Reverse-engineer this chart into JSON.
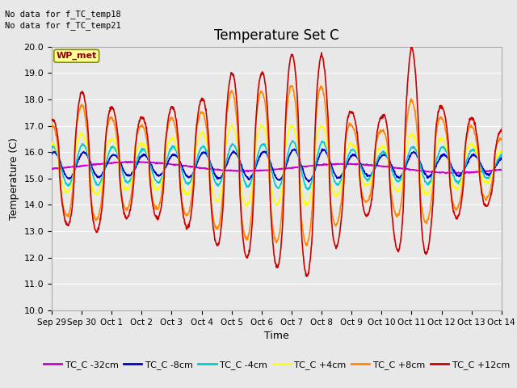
{
  "title": "Temperature Set C",
  "xlabel": "Time",
  "ylabel": "Temperature (C)",
  "ylim": [
    10.0,
    20.0
  ],
  "yticks": [
    10.0,
    11.0,
    12.0,
    13.0,
    14.0,
    15.0,
    16.0,
    17.0,
    18.0,
    19.0,
    20.0
  ],
  "background_color": "#e8e8e8",
  "plot_bg_color": "#e8e8e8",
  "grid_color": "#ffffff",
  "note1": "No data for f_TC_temp18",
  "note2": "No data for f_TC_temp21",
  "wp_met_label": "WP_met",
  "wp_met_color": "#ffff99",
  "wp_met_border": "#8b8b00",
  "series": [
    {
      "label": "TC_C -32cm",
      "color": "#cc00cc",
      "linewidth": 1.2
    },
    {
      "label": "TC_C -8cm",
      "color": "#0000cc",
      "linewidth": 1.2
    },
    {
      "label": "TC_C -4cm",
      "color": "#00cccc",
      "linewidth": 1.2
    },
    {
      "label": "TC_C +4cm",
      "color": "#ffff00",
      "linewidth": 1.2
    },
    {
      "label": "TC_C +8cm",
      "color": "#ff8800",
      "linewidth": 1.2
    },
    {
      "label": "TC_C +12cm",
      "color": "#cc0000",
      "linewidth": 1.2
    }
  ],
  "xtick_labels": [
    "Sep 29",
    "Sep 30",
    "Oct 1",
    "Oct 2",
    "Oct 3",
    "Oct 4",
    "Oct 5",
    "Oct 6",
    "Oct 7",
    "Oct 8",
    "Oct 9",
    "Oct 10",
    "Oct 11",
    "Oct 12",
    "Oct 13",
    "Oct 14"
  ],
  "legend_fontsize": 8,
  "title_fontsize": 12
}
